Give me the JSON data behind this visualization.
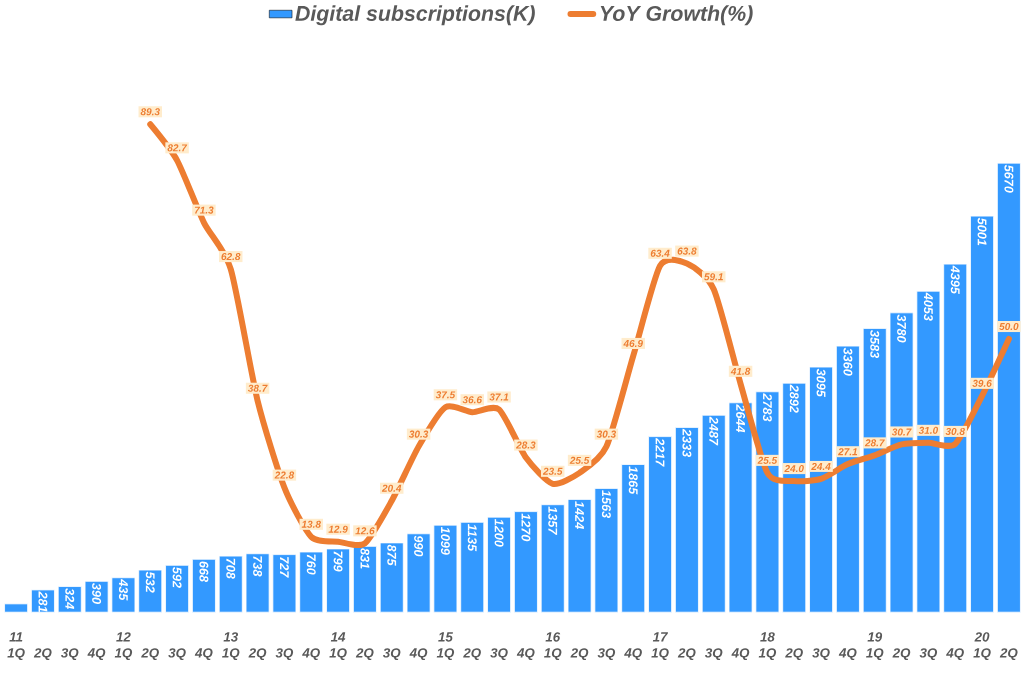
{
  "chart_data": {
    "type": "bar",
    "categories": [
      "11 1Q",
      "2Q",
      "3Q",
      "4Q",
      "12 1Q",
      "2Q",
      "3Q",
      "4Q",
      "13 1Q",
      "2Q",
      "3Q",
      "4Q",
      "14 1Q",
      "2Q",
      "3Q",
      "4Q",
      "15 1Q",
      "2Q",
      "3Q",
      "4Q",
      "16 1Q",
      "2Q",
      "3Q",
      "4Q",
      "17 1Q",
      "2Q",
      "3Q",
      "4Q",
      "18 1Q",
      "2Q",
      "3Q",
      "4Q",
      "19 1Q",
      "2Q",
      "3Q",
      "4Q",
      "20 1Q",
      "2Q"
    ],
    "series": [
      {
        "name": "Digital subscriptions(K)",
        "color": "#3399ff",
        "values": [
          105,
          281,
          324,
          390,
          435,
          532,
          592,
          668,
          708,
          738,
          727,
          760,
          799,
          831,
          875,
          990,
          1099,
          1135,
          1200,
          1270,
          1357,
          1424,
          1563,
          1865,
          2217,
          2333,
          2487,
          2644,
          2783,
          2892,
          3095,
          3360,
          3583,
          3780,
          4053,
          4395,
          5001,
          5670
        ],
        "value_labels": [
          null,
          "281",
          "324",
          "390",
          "435",
          "532",
          "592",
          "668",
          "708",
          "738",
          "727",
          "760",
          "799",
          "831",
          "875",
          "990",
          "1099",
          "1135",
          "1200",
          "1270",
          "1357",
          "1424",
          "1563",
          "1865",
          "2217",
          "2333",
          "2487",
          "2644",
          "2783",
          "2892",
          "3095",
          "3360",
          "3583",
          "3780",
          "4053",
          "4395",
          "5001",
          "5670"
        ]
      },
      {
        "name": "YoY Growth(%)",
        "type": "line",
        "axis": "y2",
        "color": "#ed7d31",
        "marker": "none",
        "line_style": "solid",
        "values": [
          null,
          null,
          null,
          null,
          null,
          89.3,
          82.7,
          71.3,
          62.8,
          38.7,
          22.8,
          13.8,
          12.9,
          12.6,
          20.4,
          30.3,
          37.5,
          36.6,
          37.1,
          28.3,
          23.5,
          25.5,
          30.3,
          46.9,
          63.4,
          63.8,
          59.1,
          41.8,
          25.5,
          24.0,
          24.4,
          27.1,
          28.7,
          30.7,
          31.0,
          30.8,
          39.6,
          50.0
        ],
        "value_labels": [
          null,
          null,
          null,
          null,
          null,
          "89.3",
          "82.7",
          "71.3",
          "62.8",
          "38.7",
          "22.8",
          "13.8",
          "12.9",
          "12.6",
          "20.4",
          "30.3",
          "37.5",
          "36.6",
          "37.1",
          "28.3",
          "23.5",
          "25.5",
          "30.3",
          "46.9",
          "63.4",
          "63.8",
          "59.1",
          "41.8",
          "25.5",
          "24.0",
          "24.4",
          "27.1",
          "28.7",
          "30.7",
          "31.0",
          "30.8",
          "39.6",
          "50.0"
        ]
      }
    ],
    "tick_labels": "x",
    "grid": false,
    "legend": "top"
  }
}
